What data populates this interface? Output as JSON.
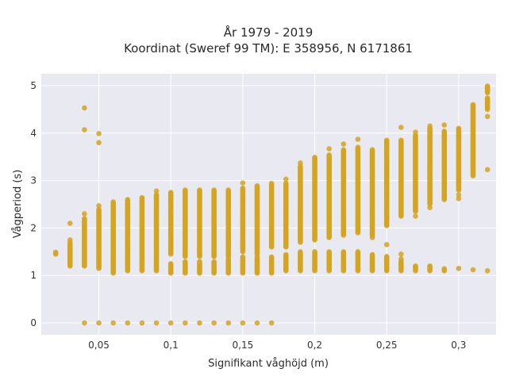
{
  "chart_data": {
    "type": "scatter",
    "title_line1": "År 1979 - 2019",
    "title_line2": "Koordinat (Sweref 99 TM): E 358956, N 6171861",
    "xlabel": "Signifikant våghöjd (m)",
    "ylabel": "Vågperiod (s)",
    "xlim": [
      0.01,
      0.326
    ],
    "ylim": [
      -0.25,
      5.25
    ],
    "grid": true,
    "x_ticks": [
      {
        "v": 0.05,
        "label": "0,05"
      },
      {
        "v": 0.1,
        "label": "0,1"
      },
      {
        "v": 0.15,
        "label": "0,15"
      },
      {
        "v": 0.2,
        "label": "0,2"
      },
      {
        "v": 0.25,
        "label": "0,25"
      },
      {
        "v": 0.3,
        "label": "0,3"
      }
    ],
    "y_ticks": [
      {
        "v": 0,
        "label": "0"
      },
      {
        "v": 1,
        "label": "1"
      },
      {
        "v": 2,
        "label": "2"
      },
      {
        "v": 3,
        "label": "3"
      },
      {
        "v": 4,
        "label": "4"
      },
      {
        "v": 5,
        "label": "5"
      }
    ],
    "colors": {
      "marker": "#D4A520",
      "plot_bg": "#E9E9F1",
      "grid": "#ffffff"
    },
    "columns": [
      {
        "x": 0.02,
        "bands": [
          [
            1.45,
            1.5
          ]
        ],
        "points": []
      },
      {
        "x": 0.03,
        "bands": [
          [
            1.2,
            1.7
          ]
        ],
        "points": [
          1.75,
          2.1
        ]
      },
      {
        "x": 0.04,
        "bands": [
          [
            1.2,
            2.2
          ]
        ],
        "points": [
          0,
          2.3,
          4.07,
          4.53
        ]
      },
      {
        "x": 0.05,
        "bands": [
          [
            1.15,
            2.4
          ]
        ],
        "points": [
          0,
          2.47,
          3.8,
          3.99
        ]
      },
      {
        "x": 0.06,
        "bands": [
          [
            1.05,
            2.55
          ]
        ],
        "points": [
          0
        ]
      },
      {
        "x": 0.07,
        "bands": [
          [
            1.1,
            2.6
          ]
        ],
        "points": [
          0
        ]
      },
      {
        "x": 0.08,
        "bands": [
          [
            1.1,
            2.65
          ]
        ],
        "points": [
          0
        ]
      },
      {
        "x": 0.09,
        "bands": [
          [
            1.1,
            2.7
          ]
        ],
        "points": [
          0,
          2.78
        ]
      },
      {
        "x": 0.1,
        "bands": [
          [
            1.05,
            1.25
          ],
          [
            1.45,
            2.75
          ]
        ],
        "points": [
          0
        ]
      },
      {
        "x": 0.11,
        "bands": [
          [
            1.05,
            1.3
          ],
          [
            1.4,
            2.8
          ]
        ],
        "points": [
          0
        ]
      },
      {
        "x": 0.12,
        "bands": [
          [
            1.05,
            1.3
          ],
          [
            1.4,
            2.8
          ]
        ],
        "points": [
          0
        ]
      },
      {
        "x": 0.13,
        "bands": [
          [
            1.05,
            1.3
          ],
          [
            1.4,
            2.8
          ]
        ],
        "points": [
          0
        ]
      },
      {
        "x": 0.14,
        "bands": [
          [
            1.05,
            1.35
          ],
          [
            1.4,
            2.8
          ]
        ],
        "points": [
          0
        ]
      },
      {
        "x": 0.15,
        "bands": [
          [
            1.05,
            1.4
          ],
          [
            1.5,
            2.85
          ]
        ],
        "points": [
          0,
          2.95
        ]
      },
      {
        "x": 0.16,
        "bands": [
          [
            1.05,
            1.4
          ],
          [
            1.45,
            2.9
          ]
        ],
        "points": [
          0
        ]
      },
      {
        "x": 0.17,
        "bands": [
          [
            1.05,
            1.4
          ],
          [
            1.6,
            2.95
          ]
        ],
        "points": [
          0
        ]
      },
      {
        "x": 0.18,
        "bands": [
          [
            1.1,
            1.45
          ],
          [
            1.6,
            2.95
          ]
        ],
        "points": [
          3.03
        ]
      },
      {
        "x": 0.19,
        "bands": [
          [
            1.1,
            1.5
          ],
          [
            1.7,
            3.3
          ]
        ],
        "points": [
          3.37
        ]
      },
      {
        "x": 0.2,
        "bands": [
          [
            1.1,
            1.5
          ],
          [
            1.75,
            3.5
          ]
        ],
        "points": []
      },
      {
        "x": 0.21,
        "bands": [
          [
            1.1,
            1.5
          ],
          [
            1.8,
            3.55
          ]
        ],
        "points": [
          3.67
        ]
      },
      {
        "x": 0.22,
        "bands": [
          [
            1.1,
            1.5
          ],
          [
            1.85,
            3.65
          ]
        ],
        "points": [
          3.77
        ]
      },
      {
        "x": 0.23,
        "bands": [
          [
            1.1,
            1.5
          ],
          [
            1.9,
            3.7
          ]
        ],
        "points": [
          3.87
        ]
      },
      {
        "x": 0.24,
        "bands": [
          [
            1.1,
            1.45
          ],
          [
            1.85,
            3.65
          ]
        ],
        "points": [
          1.8
        ]
      },
      {
        "x": 0.25,
        "bands": [
          [
            1.1,
            1.4
          ],
          [
            2.05,
            3.85
          ]
        ],
        "points": [
          1.65
        ]
      },
      {
        "x": 0.26,
        "bands": [
          [
            1.1,
            1.3
          ],
          [
            2.25,
            3.85
          ]
        ],
        "points": [
          1.35,
          1.45,
          4.12
        ]
      },
      {
        "x": 0.27,
        "bands": [
          [
            1.1,
            1.2
          ],
          [
            2.35,
            3.95
          ]
        ],
        "points": [
          2.25,
          4.02
        ]
      },
      {
        "x": 0.28,
        "bands": [
          [
            1.1,
            1.2
          ],
          [
            2.5,
            4.1
          ]
        ],
        "points": [
          2.43,
          4.15
        ]
      },
      {
        "x": 0.29,
        "bands": [
          [
            1.1,
            1.15
          ],
          [
            2.6,
            4.05
          ]
        ],
        "points": [
          4.17
        ]
      },
      {
        "x": 0.3,
        "bands": [
          [
            2.8,
            4.1
          ]
        ],
        "points": [
          1.15,
          2.62,
          2.7
        ]
      },
      {
        "x": 0.31,
        "bands": [
          [
            3.1,
            4.6
          ]
        ],
        "points": [
          1.12
        ]
      },
      {
        "x": 0.32,
        "bands": [
          [
            4.5,
            4.75
          ],
          [
            4.85,
            5.0
          ]
        ],
        "points": [
          1.1,
          3.23,
          4.35
        ]
      }
    ]
  }
}
